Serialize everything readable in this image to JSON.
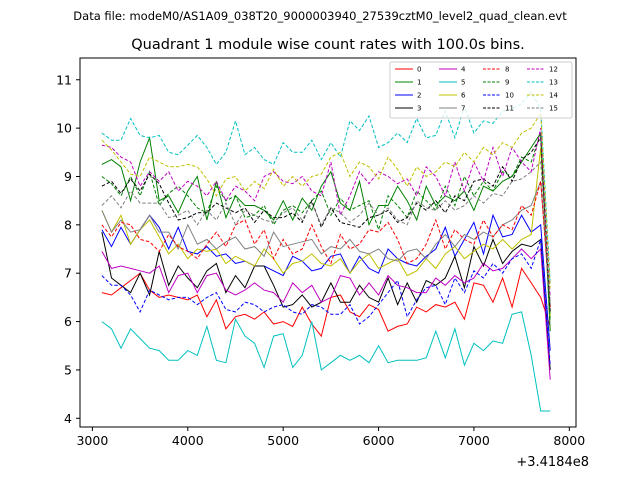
{
  "header": {
    "data_file": "Data file: modeM0/AS1A09_038T20_9000003940_27539cztM0_level2_quad_clean.evt"
  },
  "chart_data": {
    "type": "line",
    "title": "Quadrant 1 module wise count rates with 100.0s bins.",
    "xlabel": "",
    "ylabel": "",
    "x_offset_label": "+3.4184e8",
    "xlim": [
      2870,
      8070
    ],
    "ylim": [
      3.82,
      11.45
    ],
    "xticks": [
      3000,
      4000,
      5000,
      6000,
      7000,
      8000
    ],
    "xtick_labels": [
      "3000",
      "4000",
      "5000",
      "6000",
      "7000",
      "8000"
    ],
    "yticks": [
      4,
      5,
      6,
      7,
      8,
      9,
      10,
      11
    ],
    "ytick_labels": [
      "4",
      "5",
      "6",
      "7",
      "8",
      "9",
      "10",
      "11"
    ],
    "legend": {
      "position": "top-right",
      "columns": 4
    },
    "x": [
      3100,
      3200,
      3300,
      3400,
      3500,
      3600,
      3700,
      3800,
      3900,
      4000,
      4100,
      4200,
      4300,
      4400,
      4500,
      4600,
      4700,
      4800,
      4900,
      5000,
      5100,
      5200,
      5300,
      5400,
      5500,
      5600,
      5700,
      5800,
      5900,
      6000,
      6100,
      6200,
      6300,
      6400,
      6500,
      6600,
      6700,
      6800,
      6900,
      7000,
      7100,
      7200,
      7300,
      7400,
      7500,
      7600,
      7700,
      7800
    ],
    "series": [
      {
        "name": "0",
        "color": "#ff0000",
        "dash": false,
        "values": [
          6.6,
          6.55,
          6.7,
          6.85,
          7.0,
          6.65,
          6.5,
          6.55,
          6.5,
          6.45,
          6.55,
          6.1,
          6.45,
          5.85,
          6.1,
          6.15,
          6.05,
          6.2,
          5.95,
          6.0,
          5.9,
          6.3,
          5.95,
          5.7,
          6.5,
          6.55,
          6.2,
          6.1,
          6.35,
          6.25,
          5.8,
          5.9,
          5.95,
          6.3,
          6.2,
          6.35,
          6.3,
          6.4,
          6.05,
          6.8,
          6.75,
          6.4,
          6.9,
          6.3,
          7.1,
          6.8,
          6.5,
          5.9
        ]
      },
      {
        "name": "1",
        "color": "#008000",
        "dash": false,
        "values": [
          9.25,
          9.35,
          9.2,
          8.5,
          9.3,
          9.8,
          8.5,
          8.6,
          8.25,
          8.7,
          9.0,
          8.1,
          8.9,
          8.15,
          8.6,
          8.4,
          8.4,
          8.3,
          8.1,
          8.5,
          8.1,
          8.55,
          8.3,
          8.8,
          9.1,
          8.45,
          8.3,
          8.9,
          8.0,
          8.4,
          8.4,
          8.8,
          8.5,
          8.1,
          8.8,
          8.4,
          8.6,
          8.5,
          8.7,
          8.3,
          8.8,
          8.7,
          8.9,
          9.0,
          9.3,
          9.6,
          9.9,
          5.8
        ]
      },
      {
        "name": "2",
        "color": "#0000ff",
        "dash": false,
        "values": [
          7.9,
          7.55,
          7.95,
          7.6,
          7.9,
          8.2,
          7.95,
          7.5,
          7.95,
          7.45,
          7.4,
          7.55,
          7.35,
          7.4,
          7.2,
          7.25,
          7.15,
          7.15,
          7.05,
          6.95,
          7.35,
          7.25,
          7.05,
          7.1,
          7.35,
          7.4,
          7.0,
          7.35,
          7.1,
          7.0,
          7.5,
          7.3,
          7.2,
          7.15,
          7.35,
          7.5,
          7.95,
          7.35,
          7.7,
          8.05,
          7.4,
          8.2,
          7.75,
          7.8,
          8.2,
          7.85,
          8.0,
          5.4
        ]
      },
      {
        "name": "3",
        "color": "#000000",
        "dash": false,
        "values": [
          7.85,
          6.9,
          6.75,
          6.6,
          7.0,
          6.55,
          7.45,
          6.75,
          7.15,
          6.9,
          6.7,
          7.05,
          7.2,
          6.6,
          6.95,
          6.7,
          7.15,
          7.15,
          6.75,
          6.3,
          6.35,
          6.55,
          6.3,
          6.4,
          6.8,
          6.4,
          6.4,
          6.75,
          6.5,
          6.4,
          6.9,
          6.35,
          6.8,
          6.4,
          6.85,
          6.75,
          6.9,
          7.35,
          6.7,
          7.55,
          7.15,
          7.7,
          7.2,
          7.45,
          7.6,
          7.55,
          7.7,
          5.0
        ]
      },
      {
        "name": "4",
        "color": "#c000c0",
        "dash": false,
        "values": [
          7.45,
          7.1,
          7.15,
          7.1,
          7.05,
          7.0,
          7.15,
          6.6,
          6.95,
          7.0,
          6.6,
          6.95,
          7.0,
          6.65,
          6.55,
          6.65,
          6.8,
          6.65,
          6.6,
          6.4,
          6.8,
          6.6,
          6.75,
          6.4,
          6.5,
          6.95,
          6.9,
          6.55,
          6.8,
          6.55,
          6.95,
          6.75,
          6.7,
          6.6,
          6.6,
          6.9,
          6.75,
          6.95,
          6.8,
          6.9,
          7.2,
          7.05,
          7.1,
          7.3,
          7.5,
          7.3,
          7.5,
          4.8
        ]
      },
      {
        "name": "5",
        "color": "#00c0c0",
        "dash": false,
        "values": [
          6.0,
          5.85,
          5.45,
          5.85,
          5.65,
          5.45,
          5.4,
          5.2,
          5.2,
          5.4,
          5.3,
          5.9,
          5.2,
          5.15,
          6.05,
          5.7,
          5.55,
          5.05,
          5.7,
          5.75,
          5.05,
          5.3,
          6.0,
          5.0,
          5.15,
          5.3,
          5.2,
          5.3,
          5.15,
          5.5,
          5.15,
          5.2,
          5.2,
          5.2,
          5.25,
          5.8,
          5.25,
          5.85,
          5.1,
          5.55,
          5.4,
          5.6,
          5.55,
          6.15,
          6.2,
          5.3,
          4.15,
          4.15
        ]
      },
      {
        "name": "6",
        "color": "#c0c000",
        "dash": false,
        "values": [
          8.3,
          7.85,
          8.2,
          7.6,
          7.9,
          8.1,
          7.75,
          7.4,
          7.6,
          7.3,
          7.5,
          7.45,
          7.5,
          7.2,
          7.35,
          7.25,
          7.15,
          7.5,
          7.3,
          7.0,
          7.2,
          7.25,
          7.4,
          7.2,
          7.15,
          7.3,
          7.0,
          7.25,
          7.4,
          7.1,
          7.2,
          7.3,
          6.95,
          7.05,
          7.3,
          7.1,
          7.4,
          7.55,
          7.3,
          7.45,
          7.6,
          7.5,
          7.7,
          7.5,
          7.7,
          7.8,
          9.6,
          6.1
        ]
      },
      {
        "name": "7",
        "color": "#808080",
        "dash": false,
        "values": [
          8.3,
          7.85,
          8.1,
          7.85,
          7.9,
          8.2,
          7.85,
          7.85,
          7.5,
          8.0,
          7.6,
          7.7,
          7.5,
          7.65,
          7.75,
          7.5,
          7.55,
          7.35,
          7.85,
          7.55,
          7.6,
          7.65,
          7.7,
          7.4,
          7.55,
          7.5,
          7.7,
          7.45,
          7.4,
          7.5,
          7.3,
          7.25,
          7.45,
          7.5,
          7.3,
          7.6,
          7.8,
          7.55,
          7.8,
          7.7,
          7.85,
          7.75,
          8.0,
          8.1,
          8.3,
          8.4,
          8.9,
          6.3
        ]
      },
      {
        "name": "8",
        "color": "#ff0000",
        "dash": true,
        "values": [
          8.0,
          7.75,
          8.05,
          8.0,
          7.7,
          7.65,
          7.45,
          7.8,
          7.55,
          7.45,
          7.3,
          7.6,
          7.85,
          7.55,
          8.0,
          8.1,
          7.6,
          7.9,
          7.3,
          7.7,
          7.4,
          7.5,
          8.0,
          7.55,
          7.2,
          7.8,
          7.5,
          7.6,
          7.9,
          7.85,
          8.05,
          7.7,
          7.2,
          7.3,
          7.6,
          8.1,
          7.5,
          7.9,
          7.7,
          7.6,
          8.1,
          7.75,
          8.0,
          7.9,
          8.4,
          8.2,
          8.9,
          6.3
        ]
      },
      {
        "name": "9",
        "color": "#008000",
        "dash": true,
        "values": [
          9.0,
          8.85,
          8.6,
          9.0,
          8.6,
          9.1,
          8.4,
          8.65,
          8.8,
          8.6,
          8.35,
          8.25,
          8.8,
          8.5,
          8.6,
          8.15,
          8.2,
          8.4,
          8.0,
          8.3,
          8.4,
          8.25,
          8.5,
          8.7,
          8.2,
          8.55,
          8.3,
          8.4,
          8.5,
          7.9,
          8.6,
          8.4,
          8.15,
          8.7,
          8.5,
          8.3,
          8.8,
          8.4,
          9.0,
          8.6,
          8.9,
          8.7,
          9.1,
          9.0,
          9.4,
          9.3,
          9.9,
          6.0
        ]
      },
      {
        "name": "10",
        "color": "#0000ff",
        "dash": true,
        "values": [
          6.95,
          6.75,
          6.75,
          6.55,
          6.2,
          6.65,
          6.55,
          6.45,
          6.5,
          6.5,
          6.35,
          6.5,
          6.6,
          6.25,
          6.2,
          6.4,
          6.35,
          6.2,
          6.3,
          6.35,
          6.2,
          6.15,
          6.35,
          6.3,
          6.15,
          6.15,
          6.35,
          5.95,
          6.1,
          6.35,
          6.6,
          6.85,
          6.1,
          6.45,
          6.7,
          6.75,
          6.35,
          6.9,
          6.6,
          7.05,
          6.9,
          7.2,
          7.0,
          7.3,
          7.4,
          7.1,
          7.7,
          5.1
        ]
      },
      {
        "name": "11",
        "color": "#000000",
        "dash": true,
        "values": [
          8.8,
          8.9,
          8.65,
          8.95,
          8.7,
          9.05,
          8.85,
          8.45,
          8.1,
          8.15,
          8.25,
          8.25,
          8.45,
          8.35,
          8.25,
          8.35,
          8.05,
          8.3,
          8.15,
          8.15,
          8.25,
          8.05,
          8.5,
          7.95,
          8.35,
          8.05,
          8.0,
          7.95,
          8.15,
          8.2,
          8.3,
          8.05,
          8.15,
          8.45,
          8.3,
          8.5,
          8.25,
          8.6,
          8.5,
          8.9,
          8.95,
          8.8,
          9.2,
          8.9,
          9.35,
          9.5,
          9.8,
          6.2
        ]
      },
      {
        "name": "12",
        "color": "#c000c0",
        "dash": true,
        "values": [
          9.65,
          9.6,
          9.4,
          9.3,
          8.8,
          9.1,
          8.9,
          9.1,
          8.7,
          8.9,
          8.8,
          8.6,
          8.9,
          8.5,
          8.8,
          8.7,
          8.5,
          9.0,
          9.1,
          8.9,
          8.85,
          9.0,
          8.7,
          8.6,
          9.3,
          8.2,
          8.6,
          9.1,
          8.85,
          9.1,
          9.0,
          8.85,
          8.95,
          8.6,
          9.2,
          9.0,
          8.6,
          9.3,
          8.7,
          9.3,
          8.9,
          9.6,
          9.0,
          9.6,
          9.3,
          9.1,
          10.0,
          6.5
        ]
      },
      {
        "name": "13",
        "color": "#00c0c0",
        "dash": true,
        "values": [
          9.9,
          9.75,
          9.75,
          10.2,
          9.85,
          9.8,
          9.85,
          9.5,
          9.45,
          9.65,
          9.85,
          9.6,
          9.25,
          9.5,
          10.15,
          9.45,
          9.6,
          9.35,
          9.25,
          9.7,
          9.5,
          9.5,
          9.75,
          9.35,
          9.7,
          9.4,
          10.15,
          9.95,
          10.25,
          9.6,
          9.7,
          9.9,
          9.7,
          10.2,
          9.8,
          9.85,
          10.35,
          9.8,
          10.45,
          9.9,
          10.15,
          10.1,
          10.35,
          10.4,
          10.5,
          10.75,
          10.4,
          6.8
        ]
      },
      {
        "name": "14",
        "color": "#c0c000",
        "dash": true,
        "values": [
          9.75,
          9.55,
          9.3,
          9.05,
          9.0,
          9.4,
          9.3,
          9.2,
          9.2,
          9.25,
          9.2,
          8.95,
          8.6,
          8.95,
          9.0,
          8.7,
          8.9,
          8.75,
          9.15,
          8.8,
          9.0,
          8.8,
          9.0,
          9.05,
          9.4,
          9.5,
          9.0,
          9.3,
          9.2,
          8.95,
          9.4,
          9.15,
          8.8,
          9.2,
          9.0,
          9.1,
          9.3,
          9.2,
          9.5,
          9.3,
          9.6,
          9.45,
          9.7,
          9.6,
          9.9,
          10.0,
          10.3,
          6.7
        ]
      },
      {
        "name": "15",
        "color": "#808080",
        "dash": true,
        "values": [
          8.4,
          8.6,
          8.35,
          8.7,
          8.45,
          8.45,
          8.45,
          8.15,
          8.2,
          8.3,
          8.0,
          8.3,
          8.1,
          8.45,
          8.0,
          8.3,
          8.2,
          8.1,
          8.05,
          8.25,
          8.35,
          8.1,
          8.45,
          8.0,
          8.35,
          8.25,
          8.05,
          8.2,
          8.45,
          8.2,
          8.35,
          8.1,
          8.0,
          8.5,
          8.35,
          8.3,
          8.5,
          8.3,
          8.4,
          8.6,
          8.45,
          8.65,
          8.6,
          8.9,
          8.95,
          9.1,
          9.3,
          6.4
        ]
      }
    ]
  }
}
